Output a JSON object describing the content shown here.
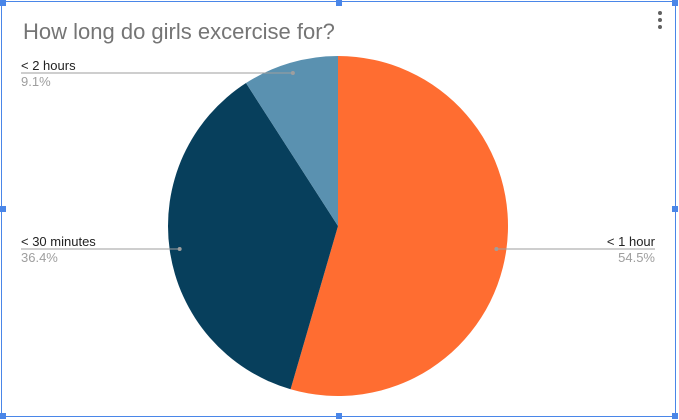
{
  "chart_data": {
    "type": "pie",
    "title": "How long do girls excercise for?",
    "slices": [
      {
        "label": "< 1 hour",
        "value": 54.5,
        "percent_label": "54.5%",
        "color": "#ff6d31",
        "label_side": "right"
      },
      {
        "label": "< 30 minutes",
        "value": 36.4,
        "percent_label": "36.4%",
        "color": "#073f5c",
        "label_side": "left"
      },
      {
        "label": "< 2 hours",
        "value": 9.1,
        "percent_label": "9.1%",
        "color": "#5a91b0",
        "label_side": "left"
      }
    ],
    "start_angle": "12 o'clock",
    "direction": "clockwise",
    "legend": "labeled leader lines",
    "leader_color": "#9e9e9e"
  },
  "ui": {
    "frame_color": "#4a86e8",
    "menu_icon": "more-vert-icon"
  }
}
